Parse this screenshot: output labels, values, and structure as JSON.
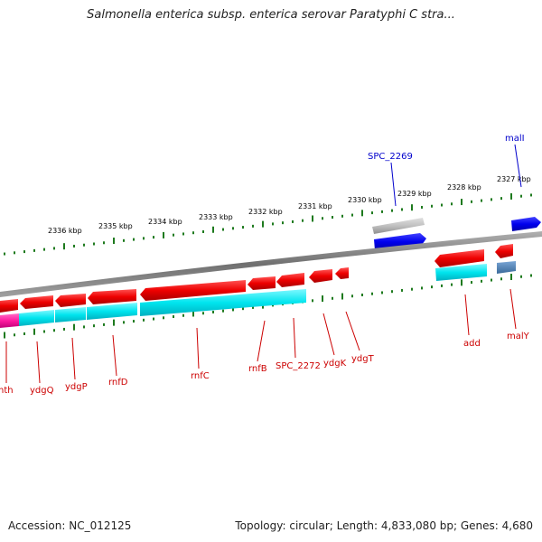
{
  "header": {
    "title": "Salmonella enterica subsp. enterica serovar Paratyphi C stra..."
  },
  "footer": {
    "accession": "Accession: NC_012125",
    "summary": "Topology: circular; Length: 4,833,080 bp; Genes: 4,680"
  },
  "scale_ticks": [
    "2336 kbp",
    "2335 kbp",
    "2334 kbp",
    "2333 kbp",
    "2332 kbp",
    "2331 kbp",
    "2330 kbp",
    "2329 kbp",
    "2328 kbp",
    "2327 kbp"
  ],
  "genes_top": [
    {
      "name": "SPC_2269",
      "color": "#0000cc"
    },
    {
      "name": "malI",
      "color": "#0000cc"
    }
  ],
  "genes_bottom": [
    {
      "name": "nth",
      "color": "#cc0000"
    },
    {
      "name": "ydgQ",
      "color": "#cc0000"
    },
    {
      "name": "ydgP",
      "color": "#cc0000"
    },
    {
      "name": "rnfD",
      "color": "#cc0000"
    },
    {
      "name": "rnfC",
      "color": "#cc0000"
    },
    {
      "name": "rnfB",
      "color": "#cc0000"
    },
    {
      "name": "SPC_2272",
      "color": "#cc0000"
    },
    {
      "name": "ydgK",
      "color": "#cc0000"
    },
    {
      "name": "ydgT",
      "color": "#cc0000"
    },
    {
      "name": "add",
      "color": "#cc0000"
    },
    {
      "name": "malY",
      "color": "#cc0000"
    }
  ],
  "colors": {
    "backbone": "#808080",
    "tick": "#1e7a1e",
    "forward_gene": "#0000ee",
    "reverse_gene": "#ee0000",
    "forward_cds": "#c0c0c0",
    "reverse_cds": "#00e5ee",
    "misc_feature": "#ff1aa0",
    "steel_feature": "#4a7fb5"
  }
}
